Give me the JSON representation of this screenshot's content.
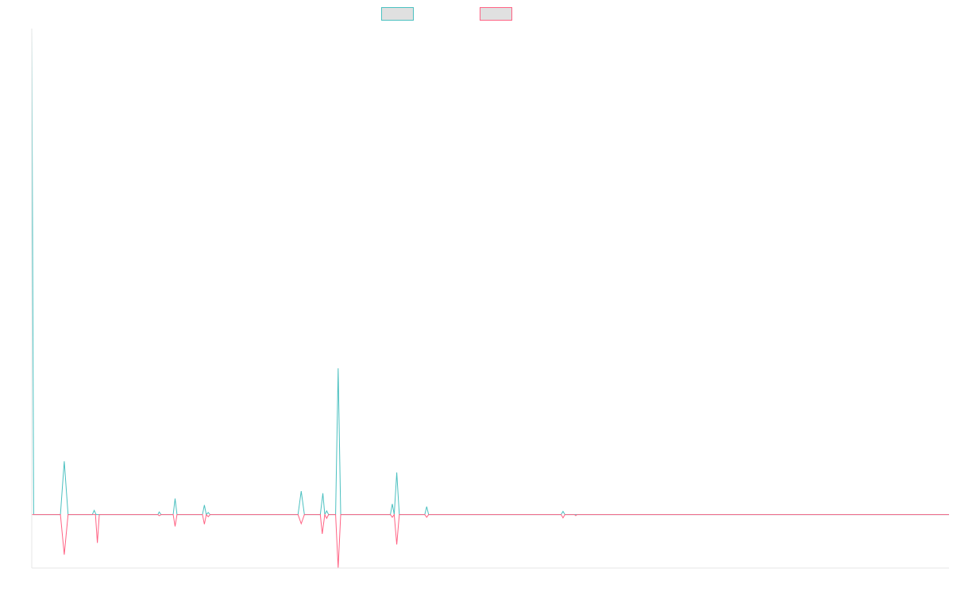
{
  "chart_data": {
    "type": "line",
    "title": "",
    "xlabel": "",
    "ylabel": "",
    "grid": false,
    "legend_placement": "top-center",
    "x_range": [
      0,
      144
    ],
    "y_range": [
      -10,
      91
    ],
    "baseline": 0,
    "series": [
      {
        "color": "#4bc0c0",
        "fill": "#e0e0e0",
        "points": [
          [
            0,
            91
          ],
          [
            0.3,
            0
          ],
          [
            4.5,
            0
          ],
          [
            5.1,
            10
          ],
          [
            5.7,
            0
          ],
          [
            9.5,
            0
          ],
          [
            9.8,
            0.8
          ],
          [
            10.1,
            0
          ],
          [
            19.8,
            0
          ],
          [
            20.0,
            0.5
          ],
          [
            20.3,
            0
          ],
          [
            22.2,
            0
          ],
          [
            22.5,
            3
          ],
          [
            22.8,
            0
          ],
          [
            26.8,
            0
          ],
          [
            27.1,
            1.8
          ],
          [
            27.4,
            0
          ],
          [
            27.7,
            0.4
          ],
          [
            28.0,
            0
          ],
          [
            41.8,
            0
          ],
          [
            42.3,
            4.4
          ],
          [
            42.8,
            0
          ],
          [
            45.3,
            0
          ],
          [
            45.7,
            4.0
          ],
          [
            46.0,
            0
          ],
          [
            46.3,
            0.7
          ],
          [
            46.6,
            0
          ],
          [
            47.7,
            0
          ],
          [
            48.1,
            27.4
          ],
          [
            48.5,
            0
          ],
          [
            56.3,
            0
          ],
          [
            56.6,
            2.0
          ],
          [
            56.9,
            0
          ],
          [
            57.3,
            7.9
          ],
          [
            57.7,
            0
          ],
          [
            61.7,
            0
          ],
          [
            62.0,
            1.5
          ],
          [
            62.3,
            0
          ],
          [
            83.1,
            0
          ],
          [
            83.4,
            0.6
          ],
          [
            83.7,
            0
          ],
          [
            144,
            0
          ]
        ]
      },
      {
        "color": "#ff6384",
        "fill": "#e0e0e0",
        "points": [
          [
            0,
            0
          ],
          [
            4.5,
            0
          ],
          [
            5.1,
            -7.5
          ],
          [
            5.7,
            0
          ],
          [
            10.0,
            0
          ],
          [
            10.3,
            -5.3
          ],
          [
            10.6,
            0
          ],
          [
            19.8,
            0
          ],
          [
            20.0,
            -0.2
          ],
          [
            20.3,
            0
          ],
          [
            22.2,
            0
          ],
          [
            22.5,
            -2.2
          ],
          [
            22.8,
            0
          ],
          [
            26.8,
            0
          ],
          [
            27.1,
            -1.8
          ],
          [
            27.4,
            0
          ],
          [
            27.7,
            -0.4
          ],
          [
            28.0,
            0
          ],
          [
            41.8,
            0
          ],
          [
            42.3,
            -1.7
          ],
          [
            42.8,
            0
          ],
          [
            45.3,
            0
          ],
          [
            45.6,
            -3.6
          ],
          [
            46.0,
            0
          ],
          [
            46.3,
            -0.7
          ],
          [
            46.6,
            0
          ],
          [
            47.7,
            0
          ],
          [
            48.1,
            -10
          ],
          [
            48.5,
            0
          ],
          [
            56.3,
            0
          ],
          [
            56.6,
            -0.5
          ],
          [
            56.9,
            0
          ],
          [
            57.3,
            -5.6
          ],
          [
            57.7,
            0
          ],
          [
            61.7,
            0
          ],
          [
            62.0,
            -0.5
          ],
          [
            62.3,
            0
          ],
          [
            83.1,
            0
          ],
          [
            83.4,
            -0.6
          ],
          [
            83.7,
            0
          ],
          [
            85.2,
            0
          ],
          [
            85.4,
            -0.2
          ],
          [
            85.6,
            0
          ],
          [
            144,
            0
          ]
        ]
      }
    ]
  }
}
